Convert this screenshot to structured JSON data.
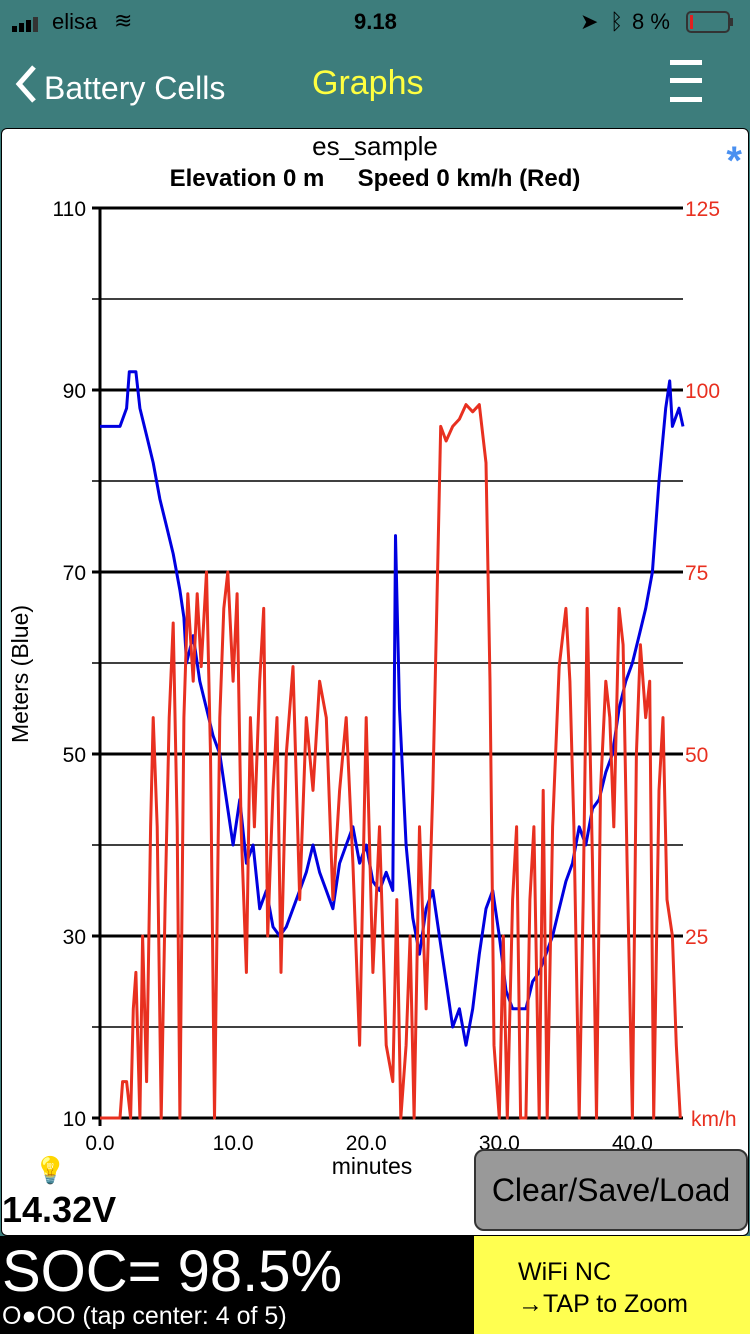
{
  "status": {
    "carrier": "elisa",
    "time": "9.18",
    "battery": "8 %"
  },
  "nav": {
    "back_label": "Battery Cells",
    "title": "Graphs"
  },
  "chart_data": {
    "type": "line",
    "title": "es_sample",
    "subtitle": "Elevation 0 m     Speed 0 km/h (Red)",
    "xlabel": "minutes",
    "ylabel": "Meters  (Blue)",
    "y2_unit": "km/h",
    "xlim": [
      0,
      43.8
    ],
    "ylim": [
      10,
      110
    ],
    "y2lim": [
      0,
      125
    ],
    "x_ticks": [
      "0.0",
      "10.0",
      "20.0",
      "30.0",
      "40.0"
    ],
    "y_ticks": [
      "10",
      "30",
      "50",
      "70",
      "90",
      "110"
    ],
    "y2_ticks": [
      "25",
      "50",
      "75",
      "100",
      "125"
    ],
    "series": [
      {
        "name": "Elevation (m)",
        "color": "#0000e0",
        "axis": "left",
        "points": [
          [
            0,
            86
          ],
          [
            1.5,
            86
          ],
          [
            2,
            88
          ],
          [
            2.2,
            92
          ],
          [
            2.7,
            92
          ],
          [
            3,
            88
          ],
          [
            3.5,
            85
          ],
          [
            4,
            82
          ],
          [
            4.5,
            78
          ],
          [
            5,
            75
          ],
          [
            5.5,
            72
          ],
          [
            6,
            68
          ],
          [
            6.3,
            65
          ],
          [
            6.5,
            60
          ],
          [
            7,
            63
          ],
          [
            7.5,
            58
          ],
          [
            8,
            55
          ],
          [
            8.5,
            52
          ],
          [
            9,
            50
          ],
          [
            9.5,
            45
          ],
          [
            10,
            40
          ],
          [
            10.5,
            45
          ],
          [
            11,
            38
          ],
          [
            11.5,
            40
          ],
          [
            12,
            33
          ],
          [
            12.5,
            35
          ],
          [
            13,
            31
          ],
          [
            13.5,
            30
          ],
          [
            14,
            31
          ],
          [
            14.5,
            33
          ],
          [
            15,
            35
          ],
          [
            15.5,
            37
          ],
          [
            16,
            40
          ],
          [
            16.5,
            37
          ],
          [
            17,
            35
          ],
          [
            17.5,
            33
          ],
          [
            18,
            38
          ],
          [
            18.5,
            40
          ],
          [
            19,
            42
          ],
          [
            19.5,
            38
          ],
          [
            20,
            40
          ],
          [
            20.5,
            36
          ],
          [
            21,
            35
          ],
          [
            21.5,
            37
          ],
          [
            22,
            35
          ],
          [
            22.2,
            74
          ],
          [
            22.5,
            55
          ],
          [
            23,
            40
          ],
          [
            23.5,
            32
          ],
          [
            24,
            28
          ],
          [
            24.5,
            33
          ],
          [
            25,
            35
          ],
          [
            25.5,
            30
          ],
          [
            26,
            25
          ],
          [
            26.5,
            20
          ],
          [
            27,
            22
          ],
          [
            27.5,
            18
          ],
          [
            28,
            22
          ],
          [
            28.5,
            28
          ],
          [
            29,
            33
          ],
          [
            29.5,
            35
          ],
          [
            30,
            30
          ],
          [
            30.5,
            24
          ],
          [
            31,
            22
          ],
          [
            32,
            22
          ],
          [
            32.5,
            25
          ],
          [
            33,
            26
          ],
          [
            33.5,
            28
          ],
          [
            34,
            30
          ],
          [
            34.5,
            33
          ],
          [
            35,
            36
          ],
          [
            35.5,
            38
          ],
          [
            36,
            42
          ],
          [
            36.5,
            40
          ],
          [
            37,
            44
          ],
          [
            37.5,
            45
          ],
          [
            38,
            48
          ],
          [
            38.5,
            50
          ],
          [
            39,
            55
          ],
          [
            39.5,
            58
          ],
          [
            40,
            60
          ],
          [
            40.5,
            63
          ],
          [
            41,
            66
          ],
          [
            41.5,
            70
          ],
          [
            42,
            80
          ],
          [
            42.5,
            88
          ],
          [
            42.8,
            91
          ],
          [
            43,
            86
          ],
          [
            43.5,
            88
          ],
          [
            43.8,
            86
          ]
        ]
      },
      {
        "name": "Speed (km/h)",
        "color": "#e83020",
        "axis": "right",
        "points": [
          [
            0,
            0
          ],
          [
            1.5,
            0
          ],
          [
            1.7,
            5
          ],
          [
            2,
            5
          ],
          [
            2.3,
            0
          ],
          [
            2.5,
            15
          ],
          [
            2.7,
            20
          ],
          [
            3,
            0
          ],
          [
            3.2,
            25
          ],
          [
            3.5,
            5
          ],
          [
            3.8,
            40
          ],
          [
            4,
            55
          ],
          [
            4.3,
            40
          ],
          [
            4.6,
            0
          ],
          [
            4.9,
            30
          ],
          [
            5.2,
            55
          ],
          [
            5.5,
            68
          ],
          [
            5.8,
            40
          ],
          [
            6,
            0
          ],
          [
            6.3,
            55
          ],
          [
            6.6,
            72
          ],
          [
            7,
            60
          ],
          [
            7.3,
            72
          ],
          [
            7.6,
            62
          ],
          [
            8,
            75
          ],
          [
            8.3,
            50
          ],
          [
            8.6,
            0
          ],
          [
            9,
            55
          ],
          [
            9.3,
            70
          ],
          [
            9.6,
            75
          ],
          [
            10,
            60
          ],
          [
            10.3,
            72
          ],
          [
            10.6,
            40
          ],
          [
            11,
            20
          ],
          [
            11.3,
            55
          ],
          [
            11.6,
            40
          ],
          [
            12,
            60
          ],
          [
            12.3,
            70
          ],
          [
            12.6,
            25
          ],
          [
            13,
            45
          ],
          [
            13.3,
            55
          ],
          [
            13.6,
            20
          ],
          [
            14,
            50
          ],
          [
            14.5,
            62
          ],
          [
            15,
            30
          ],
          [
            15.5,
            55
          ],
          [
            16,
            45
          ],
          [
            16.5,
            60
          ],
          [
            17,
            55
          ],
          [
            17.5,
            30
          ],
          [
            18,
            45
          ],
          [
            18.5,
            55
          ],
          [
            19,
            35
          ],
          [
            19.5,
            10
          ],
          [
            20,
            55
          ],
          [
            20.5,
            20
          ],
          [
            21,
            40
          ],
          [
            21.5,
            10
          ],
          [
            22,
            5
          ],
          [
            22.3,
            30
          ],
          [
            22.6,
            0
          ],
          [
            23,
            10
          ],
          [
            23.3,
            25
          ],
          [
            23.6,
            0
          ],
          [
            24,
            40
          ],
          [
            24.5,
            15
          ],
          [
            25,
            45
          ],
          [
            25.3,
            70
          ],
          [
            25.6,
            95
          ],
          [
            26,
            93
          ],
          [
            26.5,
            95
          ],
          [
            27,
            96
          ],
          [
            27.5,
            98
          ],
          [
            28,
            97
          ],
          [
            28.5,
            98
          ],
          [
            29,
            90
          ],
          [
            29.3,
            60
          ],
          [
            29.6,
            10
          ],
          [
            30,
            0
          ],
          [
            30.3,
            25
          ],
          [
            30.6,
            0
          ],
          [
            31,
            30
          ],
          [
            31.3,
            40
          ],
          [
            31.6,
            0
          ],
          [
            32,
            0
          ],
          [
            32.3,
            30
          ],
          [
            32.6,
            40
          ],
          [
            33,
            0
          ],
          [
            33.3,
            45
          ],
          [
            33.6,
            0
          ],
          [
            34,
            40
          ],
          [
            34.5,
            62
          ],
          [
            35,
            70
          ],
          [
            35.3,
            60
          ],
          [
            35.6,
            40
          ],
          [
            36,
            0
          ],
          [
            36.3,
            30
          ],
          [
            36.6,
            70
          ],
          [
            37,
            35
          ],
          [
            37.3,
            0
          ],
          [
            37.6,
            45
          ],
          [
            38,
            60
          ],
          [
            38.3,
            55
          ],
          [
            38.6,
            40
          ],
          [
            39,
            70
          ],
          [
            39.3,
            65
          ],
          [
            39.6,
            35
          ],
          [
            40,
            0
          ],
          [
            40.3,
            50
          ],
          [
            40.6,
            65
          ],
          [
            41,
            55
          ],
          [
            41.3,
            60
          ],
          [
            41.6,
            0
          ],
          [
            42,
            45
          ],
          [
            42.3,
            55
          ],
          [
            42.6,
            30
          ],
          [
            43,
            25
          ],
          [
            43.3,
            10
          ],
          [
            43.6,
            0
          ]
        ]
      }
    ]
  },
  "voltage": "14.32V",
  "buttons": {
    "clear_save_load": "Clear/Save/Load"
  },
  "soc": "SOC= 98.5%",
  "page_indicator": "O●OO (tap center: 4 of 5)",
  "wifi": {
    "line1": "WiFi NC",
    "line2": "→TAP to Zoom"
  }
}
